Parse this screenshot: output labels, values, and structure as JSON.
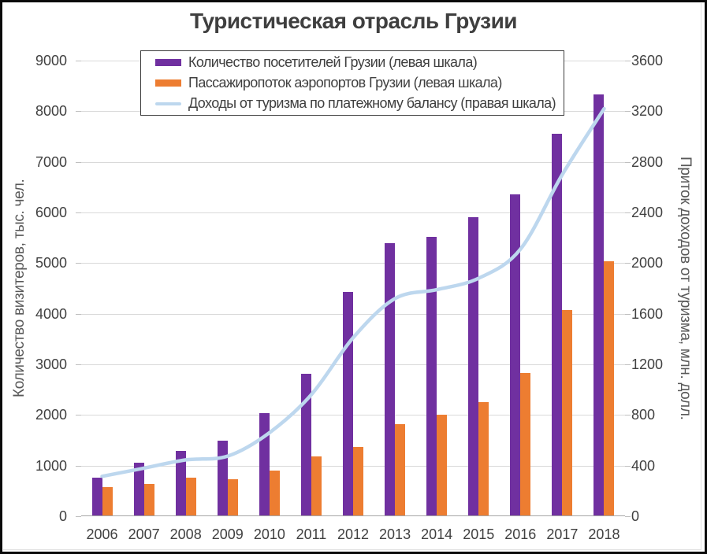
{
  "window": {
    "background": "#ffffff",
    "border_color": "#0a0a0a"
  },
  "chart_data": {
    "type": "bar",
    "title": "Туристическая отрасль Грузии",
    "categories": [
      "2006",
      "2007",
      "2008",
      "2009",
      "2010",
      "2011",
      "2012",
      "2013",
      "2014",
      "2015",
      "2016",
      "2017",
      "2018"
    ],
    "series": [
      {
        "name": "Количество посетителей Грузии (левая шкала)",
        "type": "bar",
        "axis": "left",
        "color": "#7030A0",
        "values": [
          760,
          1050,
          1290,
          1500,
          2030,
          2820,
          4430,
          5390,
          5520,
          5900,
          6360,
          7560,
          8330
        ]
      },
      {
        "name": "Пассажиропоток аэропортов Грузии (левая шкала)",
        "type": "bar",
        "axis": "left",
        "color": "#ED7D31",
        "values": [
          575,
          640,
          765,
          730,
          895,
          1185,
          1375,
          1815,
          2000,
          2255,
          2830,
          4070,
          5030
        ]
      },
      {
        "name": "Доходы от туризма по платежному балансу (правая шкала)",
        "type": "line",
        "axis": "right",
        "color": "#BDD7EE",
        "values": [
          315,
          380,
          445,
          475,
          660,
          960,
          1410,
          1720,
          1790,
          1880,
          2110,
          2700,
          3220
        ]
      }
    ],
    "left_axis": {
      "label": "Количество визитеров, тыс. чел.",
      "min": 0,
      "max": 9000,
      "step": 1000
    },
    "right_axis": {
      "label": "Приток доходов от туризма, млн. долл.",
      "min": 0,
      "max": 3600,
      "step": 400
    },
    "grid": true,
    "legend_position": "top",
    "colors": {
      "gridline": "#d9d9d9",
      "axis_line": "#a6a6a6",
      "tick": "#bfbfbf",
      "tick_text": "#404040",
      "axis_title_text": "#595959",
      "title_text": "#3f3f3f"
    }
  }
}
